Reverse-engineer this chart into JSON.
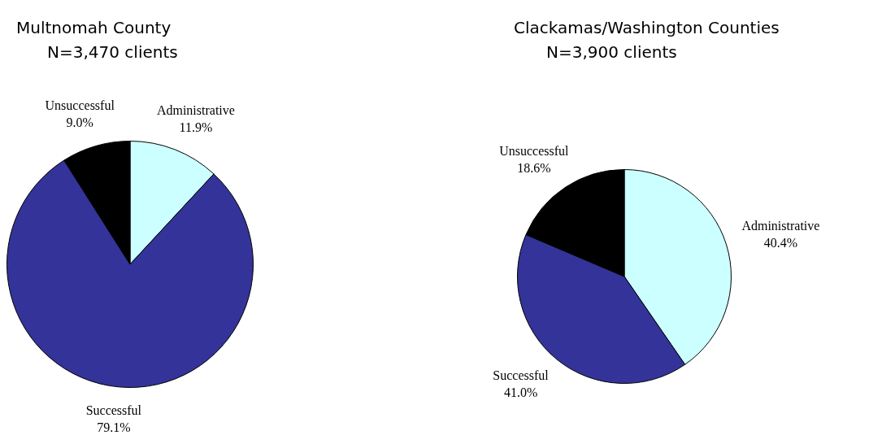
{
  "chart_data": [
    {
      "type": "pie",
      "title": "Multnomah County",
      "subtitle": "N=3,470 clients",
      "categories": [
        "Administrative",
        "Successful",
        "Unsuccessful"
      ],
      "values": [
        11.9,
        79.1,
        9.0
      ],
      "colors": [
        "#ccffff",
        "#333399",
        "#000000"
      ],
      "value_labels": [
        "11.9%",
        "79.1%",
        "9.0%"
      ]
    },
    {
      "type": "pie",
      "title": "Clackamas/Washington Counties",
      "subtitle": "N=3,900 clients",
      "categories": [
        "Administrative",
        "Successful",
        "Unsuccessful"
      ],
      "values": [
        40.4,
        41.0,
        18.6
      ],
      "colors": [
        "#ccffff",
        "#333399",
        "#000000"
      ],
      "value_labels": [
        "40.4%",
        "41.0%",
        "18.6%"
      ]
    }
  ]
}
